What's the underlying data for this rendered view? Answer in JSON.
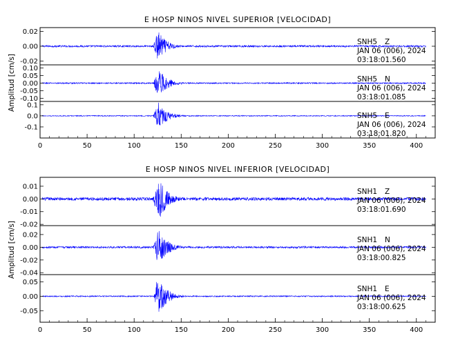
{
  "chart_data": [
    {
      "type": "line",
      "title": "E HOSP NINOS NIVEL SUPERIOR [VELOCIDAD]",
      "ylabel": "Amplitud [cm/s]",
      "x_ticks": [
        0,
        50,
        100,
        150,
        200,
        250,
        300,
        350,
        400
      ],
      "xlim": [
        0,
        420
      ],
      "grid": false,
      "line_color": "#0000ff",
      "series": [
        {
          "name": "SNH5 Z",
          "station": "SNH5",
          "component": "Z",
          "date": "JAN 06 (006), 2024",
          "time": "03:18:01.560",
          "ylim": [
            -0.025,
            0.025
          ],
          "y_ticks": [
            0.02,
            0.0,
            -0.02
          ],
          "y_tick_labels": [
            "0.02",
            "0.00",
            "-0.02"
          ],
          "event_start": 120,
          "peak_time": 125,
          "peak_amp": 0.022,
          "noise_amp": 0.0012
        },
        {
          "name": "SNH5 N",
          "station": "SNH5",
          "component": "N",
          "date": "JAN 06 (006), 2024",
          "time": "03:18:01.085",
          "ylim": [
            -0.12,
            0.12
          ],
          "y_ticks": [
            0.1,
            0.05,
            0.0,
            -0.05,
            -0.1
          ],
          "y_tick_labels": [
            "0.10",
            "0.05",
            "0.00",
            "-0.05",
            "-0.10"
          ],
          "event_start": 120,
          "peak_time": 126,
          "peak_amp": 0.1,
          "noise_amp": 0.004
        },
        {
          "name": "SNH5 E",
          "station": "SNH5",
          "component": "E",
          "date": "JAN 06 (006), 2024",
          "time": "03:18:01.820",
          "ylim": [
            -0.2,
            0.13
          ],
          "y_ticks": [
            0.1,
            0.0,
            -0.1
          ],
          "y_tick_labels": [
            "0.1",
            "0.0",
            "-0.1"
          ],
          "event_start": 120,
          "peak_time": 126,
          "peak_amp": 0.13,
          "noise_amp": 0.004
        }
      ]
    },
    {
      "type": "line",
      "title": "E HOSP NINOS NIVEL INFERIOR [VELOCIDAD]",
      "ylabel": "Amplitud [cm/s]",
      "x_ticks": [
        0,
        50,
        100,
        150,
        200,
        250,
        300,
        350,
        400
      ],
      "xlim": [
        0,
        420
      ],
      "grid": false,
      "line_color": "#0000ff",
      "series": [
        {
          "name": "SNH1 Z",
          "station": "SNH1",
          "component": "Z",
          "date": "JAN 06 (006), 2024",
          "time": "03:18:01.690",
          "ylim": [
            -0.021,
            0.017
          ],
          "y_ticks": [
            0.01,
            0.0,
            -0.01,
            -0.02
          ],
          "y_tick_labels": [
            "0.01",
            "0.00",
            "-0.01",
            "-0.02"
          ],
          "event_start": 119,
          "peak_time": 127,
          "peak_amp": 0.016,
          "noise_amp": 0.0012
        },
        {
          "name": "SNH1 N",
          "station": "SNH1",
          "component": "N",
          "date": "JAN 06 (006), 2024",
          "time": "03:18:00.825",
          "ylim": [
            -0.043,
            0.034
          ],
          "y_ticks": [
            0.02,
            0.0,
            -0.02,
            -0.04
          ],
          "y_tick_labels": [
            "0.02",
            "0.00",
            "-0.02",
            "-0.04"
          ],
          "event_start": 120,
          "peak_time": 126,
          "peak_amp": 0.03,
          "noise_amp": 0.0015
        },
        {
          "name": "SNH1 E",
          "station": "SNH1",
          "component": "E",
          "date": "JAN 06 (006), 2024",
          "time": "03:18:00.625",
          "ylim": [
            -0.09,
            0.075
          ],
          "y_ticks": [
            0.05,
            0.0,
            -0.05
          ],
          "y_tick_labels": [
            "0.05",
            "0.00",
            "-0.05"
          ],
          "event_start": 121,
          "peak_time": 125,
          "peak_amp": 0.075,
          "noise_amp": 0.002
        }
      ]
    }
  ]
}
